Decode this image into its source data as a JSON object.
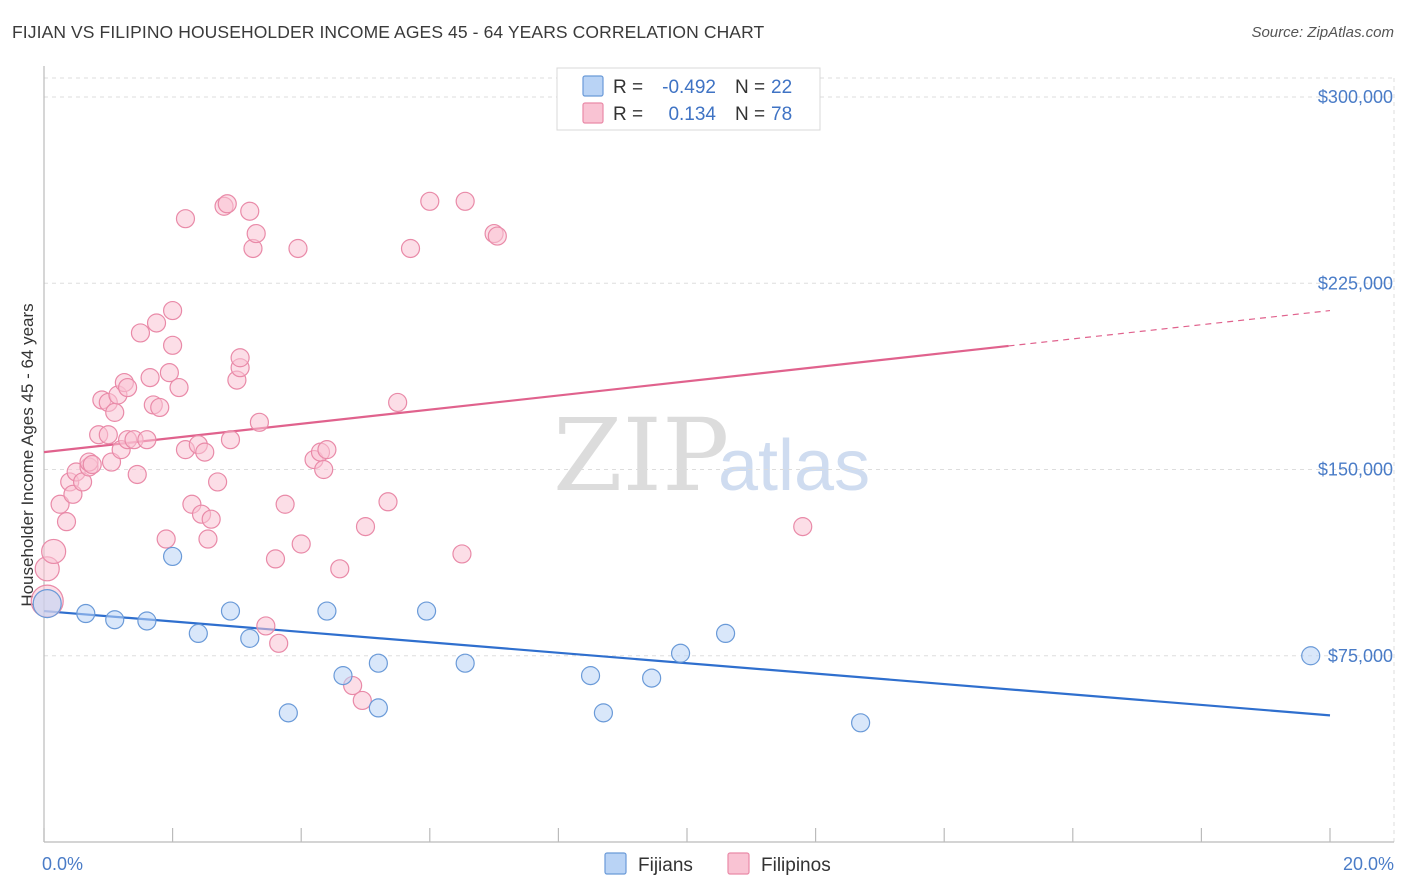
{
  "title": "FIJIAN VS FILIPINO HOUSEHOLDER INCOME AGES 45 - 64 YEARS CORRELATION CHART",
  "source": "Source: ZipAtlas.com",
  "watermark": {
    "zip": "ZIP",
    "atlas": "atlas"
  },
  "colors": {
    "fijians_fill": "#b9d3f5",
    "fijians_stroke": "#6a9ad8",
    "fijians_line": "#2f6fce",
    "filipinos_fill": "#f9c3d3",
    "filipinos_stroke": "#e98aa8",
    "filipinos_line": "#e0628d",
    "tick_text": "#4a7cc7",
    "grid": "#dddddd"
  },
  "stats": [
    {
      "series": "Fijians",
      "r_label": "R =",
      "r_value": "-0.492",
      "n_label": "N =",
      "n_value": "22"
    },
    {
      "series": "Filipinos",
      "r_label": "R =",
      "r_value": "0.134",
      "n_label": "N =",
      "n_value": "78"
    }
  ],
  "chart_data": {
    "type": "scatter",
    "title": "FIJIAN VS FILIPINO HOUSEHOLDER INCOME AGES 45 - 64 YEARS CORRELATION CHART",
    "xlabel": "",
    "ylabel": "Householder Income Ages 45 - 64 years",
    "xlim": [
      0,
      20
    ],
    "ylim": [
      0,
      300000
    ],
    "x_tick_labels": [
      "0.0%",
      "20.0%"
    ],
    "y_ticks": [
      75000,
      150000,
      225000,
      300000
    ],
    "y_tick_labels": [
      "$75,000",
      "$150,000",
      "$225,000",
      "$300,000"
    ],
    "grid": true,
    "legend_position": "bottom-center",
    "series": [
      {
        "name": "Fijians",
        "r": -0.492,
        "n": 22,
        "trend": {
          "x": [
            0,
            20
          ],
          "y": [
            93000,
            51000
          ],
          "dashed_from_x": null
        },
        "points": [
          [
            0.05,
            96000,
            14
          ],
          [
            0.65,
            92000,
            9
          ],
          [
            1.1,
            89500,
            9
          ],
          [
            1.6,
            89000,
            9
          ],
          [
            2.0,
            115000,
            9
          ],
          [
            2.4,
            84000,
            9
          ],
          [
            2.9,
            93000,
            9
          ],
          [
            3.2,
            82000,
            9
          ],
          [
            3.8,
            52000,
            9
          ],
          [
            4.4,
            93000,
            9
          ],
          [
            4.65,
            67000,
            9
          ],
          [
            5.2,
            72000,
            9
          ],
          [
            5.2,
            54000,
            9
          ],
          [
            5.95,
            93000,
            9
          ],
          [
            6.55,
            72000,
            9
          ],
          [
            8.5,
            67000,
            9
          ],
          [
            8.7,
            52000,
            9
          ],
          [
            9.45,
            66000,
            9
          ],
          [
            9.9,
            76000,
            9
          ],
          [
            10.6,
            84000,
            9
          ],
          [
            12.7,
            48000,
            9
          ],
          [
            19.7,
            75000,
            9
          ]
        ]
      },
      {
        "name": "Filipinos",
        "r": 0.134,
        "n": 78,
        "trend": {
          "x": [
            0,
            20
          ],
          "y": [
            157000,
            214000
          ],
          "dashed_from_x": 15
        },
        "points": [
          [
            0.05,
            97000,
            16
          ],
          [
            0.05,
            110000,
            12
          ],
          [
            0.15,
            117000,
            12
          ],
          [
            0.25,
            136000,
            9
          ],
          [
            0.35,
            129000,
            9
          ],
          [
            0.4,
            145000,
            9
          ],
          [
            0.45,
            140000,
            9
          ],
          [
            0.5,
            149000,
            9
          ],
          [
            0.6,
            145000,
            9
          ],
          [
            0.7,
            151000,
            9
          ],
          [
            0.7,
            153000,
            9
          ],
          [
            0.75,
            152000,
            9
          ],
          [
            0.85,
            164000,
            9
          ],
          [
            0.9,
            178000,
            9
          ],
          [
            1.0,
            164000,
            9
          ],
          [
            1.0,
            177000,
            9
          ],
          [
            1.05,
            153000,
            9
          ],
          [
            1.1,
            173000,
            9
          ],
          [
            1.15,
            180000,
            9
          ],
          [
            1.2,
            158000,
            9
          ],
          [
            1.25,
            185000,
            9
          ],
          [
            1.3,
            183000,
            9
          ],
          [
            1.3,
            162000,
            9
          ],
          [
            1.4,
            162000,
            9
          ],
          [
            1.45,
            148000,
            9
          ],
          [
            1.5,
            205000,
            9
          ],
          [
            1.6,
            162000,
            9
          ],
          [
            1.65,
            187000,
            9
          ],
          [
            1.7,
            176000,
            9
          ],
          [
            1.75,
            209000,
            9
          ],
          [
            1.8,
            175000,
            9
          ],
          [
            1.9,
            122000,
            9
          ],
          [
            1.95,
            189000,
            9
          ],
          [
            2.0,
            200000,
            9
          ],
          [
            2.0,
            214000,
            9
          ],
          [
            2.1,
            183000,
            9
          ],
          [
            2.2,
            158000,
            9
          ],
          [
            2.2,
            251000,
            9
          ],
          [
            2.3,
            136000,
            9
          ],
          [
            2.4,
            160000,
            9
          ],
          [
            2.45,
            132000,
            9
          ],
          [
            2.5,
            157000,
            9
          ],
          [
            2.55,
            122000,
            9
          ],
          [
            2.6,
            130000,
            9
          ],
          [
            2.7,
            145000,
            9
          ],
          [
            2.8,
            256000,
            9
          ],
          [
            2.85,
            257000,
            9
          ],
          [
            2.9,
            162000,
            9
          ],
          [
            3.0,
            186000,
            9
          ],
          [
            3.05,
            191000,
            9
          ],
          [
            3.05,
            195000,
            9
          ],
          [
            3.2,
            254000,
            9
          ],
          [
            3.25,
            239000,
            9
          ],
          [
            3.3,
            245000,
            9
          ],
          [
            3.35,
            169000,
            9
          ],
          [
            3.45,
            87000,
            9
          ],
          [
            3.6,
            114000,
            9
          ],
          [
            3.65,
            80000,
            9
          ],
          [
            3.75,
            136000,
            9
          ],
          [
            3.95,
            239000,
            9
          ],
          [
            4.0,
            120000,
            9
          ],
          [
            4.2,
            154000,
            9
          ],
          [
            4.3,
            157000,
            9
          ],
          [
            4.35,
            150000,
            9
          ],
          [
            4.4,
            158000,
            9
          ],
          [
            4.6,
            110000,
            9
          ],
          [
            4.8,
            63000,
            9
          ],
          [
            4.95,
            57000,
            9
          ],
          [
            5.0,
            127000,
            9
          ],
          [
            5.35,
            137000,
            9
          ],
          [
            5.5,
            177000,
            9
          ],
          [
            5.7,
            239000,
            9
          ],
          [
            6.0,
            258000,
            9
          ],
          [
            6.5,
            116000,
            9
          ],
          [
            6.55,
            258000,
            9
          ],
          [
            7.0,
            245000,
            9
          ],
          [
            7.05,
            244000,
            9
          ],
          [
            11.8,
            127000,
            9
          ]
        ]
      }
    ]
  },
  "legend": {
    "items": [
      "Fijians",
      "Filipinos"
    ]
  }
}
